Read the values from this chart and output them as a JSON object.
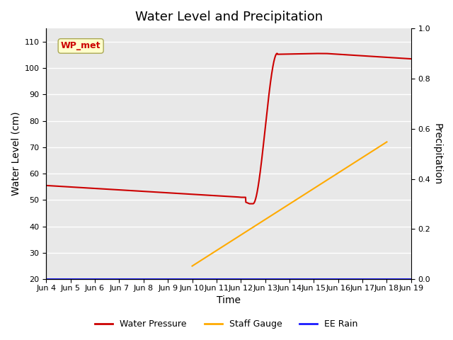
{
  "title": "Water Level and Precipitation",
  "ylabel_left": "Water Level (cm)",
  "ylabel_right": "Precipitation",
  "xlabel": "Time",
  "ylim_left": [
    20,
    115
  ],
  "ylim_right": [
    0.0,
    1.0
  ],
  "yticks_left": [
    20,
    30,
    40,
    50,
    60,
    70,
    80,
    90,
    100,
    110
  ],
  "yticks_right": [
    0.0,
    0.2,
    0.4,
    0.6,
    0.8,
    1.0
  ],
  "xtick_labels": [
    "Jun 4",
    "Jun 5",
    "Jun 6",
    "Jun 7",
    "Jun 8",
    "Jun 9",
    "Jun 10",
    "Jun 11",
    "Jun 12",
    "Jun 13",
    "Jun 14",
    "Jun 15",
    "Jun 16",
    "Jun 17",
    "Jun 18",
    "Jun 19"
  ],
  "legend_labels": [
    "Water Pressure",
    "Staff Gauge",
    "EE Rain"
  ],
  "legend_colors": [
    "#cc0000",
    "#ffaa00",
    "#1a1aff"
  ],
  "annotation_text": "WP_met",
  "annotation_color": "#cc0000",
  "annotation_bg": "#ffffcc",
  "bg_color": "#e8e8e8",
  "grid_color": "#ffffff",
  "title_fontsize": 13,
  "label_fontsize": 10,
  "tick_fontsize": 8
}
